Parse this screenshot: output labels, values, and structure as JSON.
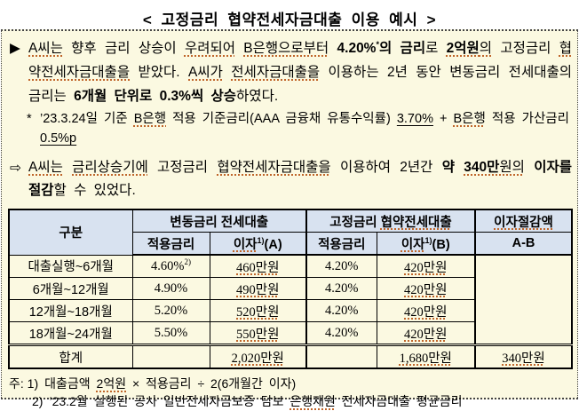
{
  "title": "< 고정금리 협약전세자금대출 이용 예시 >",
  "example": {
    "bullet": "▶",
    "runs": [
      {
        "t": "A씨는",
        "u": "dot"
      },
      {
        "t": " 향후 금리 상승이 "
      },
      {
        "t": "우려되어",
        "u": "dot"
      },
      {
        "t": " "
      },
      {
        "t": "B은행으로부터",
        "u": "dot"
      },
      {
        "t": " "
      },
      {
        "t": "4.20%",
        "b": true
      },
      {
        "t": "*",
        "b": true,
        "sup": true
      },
      {
        "t": "의 금리",
        "b": true
      },
      {
        "t": "로 "
      },
      {
        "t": "2억원",
        "b": true,
        "u": "dot"
      },
      {
        "t": "의",
        "u": "dot"
      },
      {
        "t": " 고정금리 "
      },
      {
        "t": "협약전세자금대출을",
        "u": "dot"
      },
      {
        "t": " 받았다. "
      },
      {
        "t": "A씨가",
        "u": "dot"
      },
      {
        "t": " "
      },
      {
        "t": "전세자금대출을",
        "u": "dot"
      },
      {
        "t": " 이용하는 2년 동안 변동금리 전세대출의 금리는 "
      },
      {
        "t": "6개월 단위로 0.3%씩 상승",
        "b": true
      },
      {
        "t": "하였다."
      }
    ]
  },
  "rate_note": {
    "marker": "*",
    "runs": [
      {
        "t": "’23.3.24일 기준 "
      },
      {
        "t": "B은행",
        "u": "dot"
      },
      {
        "t": " 적용 기준금리(AAA 금융채 유통수익률) "
      },
      {
        "t": "3.70%",
        "u": "solid"
      },
      {
        "t": " + "
      },
      {
        "t": "B은행",
        "u": "dot"
      },
      {
        "t": " 적용 가산금리 "
      },
      {
        "t": "0.5%p",
        "u": "solid"
      }
    ]
  },
  "conclusion": {
    "bullet": "⇨",
    "runs": [
      {
        "t": "A씨는",
        "u": "dot"
      },
      {
        "t": " "
      },
      {
        "t": "금리상승기에",
        "u": "dot"
      },
      {
        "t": " 고정금리 "
      },
      {
        "t": "협약전세자금대출을",
        "u": "dot"
      },
      {
        "t": " 이용하여 2년간 "
      },
      {
        "t": "약 ",
        "b": true
      },
      {
        "t": "340만",
        "b": true,
        "u": "dot"
      },
      {
        "t": "원의",
        "u": "dot"
      },
      {
        "t": " "
      },
      {
        "t": "이자를 절감",
        "b": true
      },
      {
        "t": "할 수 있었다."
      }
    ]
  },
  "table": {
    "header": {
      "col_gubun": "구분",
      "group_variable": "변동금리 전세대출",
      "group_fixed_runs": [
        {
          "t": "고정금리 "
        },
        {
          "t": "협약전세대출",
          "u": "dot"
        }
      ],
      "savings_runs": [
        {
          "t": "이자절감액",
          "u": "dot"
        }
      ],
      "apply_rate_var": "적용금리",
      "interest_a_runs": [
        {
          "t": "이자",
          "u": "dot"
        },
        {
          "t": "1)",
          "sup": true
        },
        {
          "t": "(A)"
        }
      ],
      "apply_rate_fix": "적용금리",
      "interest_b_runs": [
        {
          "t": "이자",
          "u": "dot"
        },
        {
          "t": "1)",
          "sup": true
        },
        {
          "t": "(B)"
        }
      ],
      "a_minus_b": "A-B"
    },
    "rows": [
      {
        "period": "대출실행~6개월",
        "var_rate_runs": [
          {
            "t": "4.60%"
          },
          {
            "t": "2)",
            "sup": true
          }
        ],
        "var_interest_runs": [
          {
            "t": "460만원",
            "u": "dot"
          }
        ],
        "fix_rate": "4.20%",
        "fix_interest_runs": [
          {
            "t": "420만원",
            "u": "dot"
          }
        ]
      },
      {
        "period": "6개월~12개월",
        "var_rate_runs": [
          {
            "t": "4.90%"
          }
        ],
        "var_interest_runs": [
          {
            "t": "490만원",
            "u": "dot"
          }
        ],
        "fix_rate": "4.20%",
        "fix_interest_runs": [
          {
            "t": "420만원",
            "u": "dot"
          }
        ]
      },
      {
        "period": "12개월~18개월",
        "var_rate_runs": [
          {
            "t": "5.20%"
          }
        ],
        "var_interest_runs": [
          {
            "t": "520만원",
            "u": "dot"
          }
        ],
        "fix_rate": "4.20%",
        "fix_interest_runs": [
          {
            "t": "420만원",
            "u": "dot"
          }
        ]
      },
      {
        "period": "18개월~24개월",
        "var_rate_runs": [
          {
            "t": "5.50%"
          }
        ],
        "var_interest_runs": [
          {
            "t": "550만원",
            "u": "dot"
          }
        ],
        "fix_rate": "4.20%",
        "fix_interest_runs": [
          {
            "t": "420만원",
            "u": "dot"
          }
        ]
      }
    ],
    "total_row": {
      "label": "합계",
      "var_interest_runs": [
        {
          "t": "2,020만원",
          "u": "dot"
        }
      ],
      "fix_interest_runs": [
        {
          "t": "1,680만원",
          "u": "dot"
        }
      ],
      "savings_runs": [
        {
          "t": "340만원",
          "u": "dot"
        }
      ]
    }
  },
  "footnotes": [
    {
      "prefix": "주: 1)",
      "runs": [
        {
          "t": "대출금액 "
        },
        {
          "t": "2억원",
          "u": "dot"
        },
        {
          "t": " × 적용금리 ÷ 2(6개월간 이자)"
        }
      ]
    },
    {
      "prefix": "2)",
      "runs": [
        {
          "t": "’23.2월 실행된 공사 일반전세자금보증 담보 "
        },
        {
          "t": "은행재원",
          "u": "dot"
        },
        {
          "t": " 전세자금대출 평균금리"
        }
      ]
    }
  ],
  "colors": {
    "content_background": "#fbf9e1",
    "table_header_background": "#d8e2f0",
    "spellcheck_underline": "#c0662b"
  }
}
